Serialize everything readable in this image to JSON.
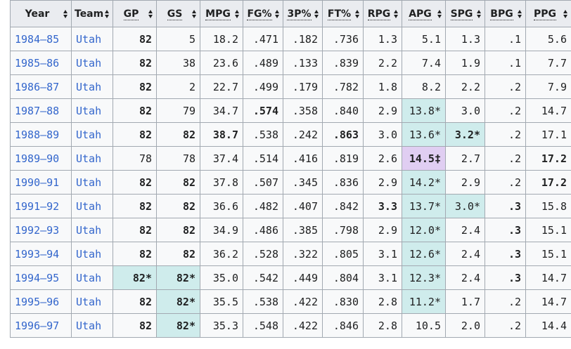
{
  "columns": [
    {
      "label": "Year",
      "abbr": false
    },
    {
      "label": "Team",
      "abbr": false
    },
    {
      "label": "GP",
      "abbr": true
    },
    {
      "label": "GS",
      "abbr": true
    },
    {
      "label": "MPG",
      "abbr": true
    },
    {
      "label": "FG%",
      "abbr": true
    },
    {
      "label": "3P%",
      "abbr": true
    },
    {
      "label": "FT%",
      "abbr": true
    },
    {
      "label": "RPG",
      "abbr": true
    },
    {
      "label": "APG",
      "abbr": true
    },
    {
      "label": "SPG",
      "abbr": true
    },
    {
      "label": "BPG",
      "abbr": true
    },
    {
      "label": "PPG",
      "abbr": true
    }
  ],
  "colors": {
    "header_bg": "#eaecf0",
    "cell_bg": "#f8f9fa",
    "league_lead": "#cfecec",
    "nba_record": "#e0cef2",
    "link": "#3366cc",
    "border": "#a2a9b1"
  },
  "rows": [
    [
      {
        "v": "1984–85",
        "link": true
      },
      {
        "v": "Utah",
        "link": true
      },
      {
        "v": "82",
        "b": true
      },
      {
        "v": "5"
      },
      {
        "v": "18.2"
      },
      {
        "v": ".471"
      },
      {
        "v": ".182"
      },
      {
        "v": ".736"
      },
      {
        "v": "1.3"
      },
      {
        "v": "5.1"
      },
      {
        "v": "1.3"
      },
      {
        "v": ".1"
      },
      {
        "v": "5.6"
      }
    ],
    [
      {
        "v": "1985–86",
        "link": true
      },
      {
        "v": "Utah",
        "link": true
      },
      {
        "v": "82",
        "b": true
      },
      {
        "v": "38"
      },
      {
        "v": "23.6"
      },
      {
        "v": ".489"
      },
      {
        "v": ".133"
      },
      {
        "v": ".839"
      },
      {
        "v": "2.2"
      },
      {
        "v": "7.4"
      },
      {
        "v": "1.9"
      },
      {
        "v": ".1"
      },
      {
        "v": "7.7"
      }
    ],
    [
      {
        "v": "1986–87",
        "link": true
      },
      {
        "v": "Utah",
        "link": true
      },
      {
        "v": "82",
        "b": true
      },
      {
        "v": "2"
      },
      {
        "v": "22.7"
      },
      {
        "v": ".499"
      },
      {
        "v": ".179"
      },
      {
        "v": ".782"
      },
      {
        "v": "1.8"
      },
      {
        "v": "8.2"
      },
      {
        "v": "2.2"
      },
      {
        "v": ".2"
      },
      {
        "v": "7.9"
      }
    ],
    [
      {
        "v": "1987–88",
        "link": true
      },
      {
        "v": "Utah",
        "link": true
      },
      {
        "v": "82",
        "b": true
      },
      {
        "v": "79"
      },
      {
        "v": "34.7"
      },
      {
        "v": ".574",
        "b": true
      },
      {
        "v": ".358"
      },
      {
        "v": ".840"
      },
      {
        "v": "2.9"
      },
      {
        "v": "13.8*",
        "hl": "lead"
      },
      {
        "v": "3.0"
      },
      {
        "v": ".2"
      },
      {
        "v": "14.7"
      }
    ],
    [
      {
        "v": "1988–89",
        "link": true
      },
      {
        "v": "Utah",
        "link": true
      },
      {
        "v": "82",
        "b": true
      },
      {
        "v": "82",
        "b": true
      },
      {
        "v": "38.7",
        "b": true
      },
      {
        "v": ".538"
      },
      {
        "v": ".242"
      },
      {
        "v": ".863",
        "b": true
      },
      {
        "v": "3.0"
      },
      {
        "v": "13.6*",
        "hl": "lead"
      },
      {
        "v": "3.2*",
        "b": true,
        "hl": "lead"
      },
      {
        "v": ".2"
      },
      {
        "v": "17.1"
      }
    ],
    [
      {
        "v": "1989–90",
        "link": true
      },
      {
        "v": "Utah",
        "link": true
      },
      {
        "v": "78"
      },
      {
        "v": "78"
      },
      {
        "v": "37.4"
      },
      {
        "v": ".514"
      },
      {
        "v": ".416"
      },
      {
        "v": ".819"
      },
      {
        "v": "2.6"
      },
      {
        "v": "14.5‡",
        "b": true,
        "hl": "record"
      },
      {
        "v": "2.7"
      },
      {
        "v": ".2"
      },
      {
        "v": "17.2",
        "b": true
      }
    ],
    [
      {
        "v": "1990–91",
        "link": true
      },
      {
        "v": "Utah",
        "link": true
      },
      {
        "v": "82",
        "b": true
      },
      {
        "v": "82",
        "b": true
      },
      {
        "v": "37.8"
      },
      {
        "v": ".507"
      },
      {
        "v": ".345"
      },
      {
        "v": ".836"
      },
      {
        "v": "2.9"
      },
      {
        "v": "14.2*",
        "hl": "lead"
      },
      {
        "v": "2.9"
      },
      {
        "v": ".2"
      },
      {
        "v": "17.2",
        "b": true
      }
    ],
    [
      {
        "v": "1991–92",
        "link": true
      },
      {
        "v": "Utah",
        "link": true
      },
      {
        "v": "82",
        "b": true
      },
      {
        "v": "82",
        "b": true
      },
      {
        "v": "36.6"
      },
      {
        "v": ".482"
      },
      {
        "v": ".407"
      },
      {
        "v": ".842"
      },
      {
        "v": "3.3",
        "b": true
      },
      {
        "v": "13.7*",
        "hl": "lead"
      },
      {
        "v": "3.0*",
        "hl": "lead"
      },
      {
        "v": ".3",
        "b": true
      },
      {
        "v": "15.8"
      }
    ],
    [
      {
        "v": "1992–93",
        "link": true
      },
      {
        "v": "Utah",
        "link": true
      },
      {
        "v": "82",
        "b": true
      },
      {
        "v": "82",
        "b": true
      },
      {
        "v": "34.9"
      },
      {
        "v": ".486"
      },
      {
        "v": ".385"
      },
      {
        "v": ".798"
      },
      {
        "v": "2.9"
      },
      {
        "v": "12.0*",
        "hl": "lead"
      },
      {
        "v": "2.4"
      },
      {
        "v": ".3",
        "b": true
      },
      {
        "v": "15.1"
      }
    ],
    [
      {
        "v": "1993–94",
        "link": true
      },
      {
        "v": "Utah",
        "link": true
      },
      {
        "v": "82",
        "b": true
      },
      {
        "v": "82",
        "b": true
      },
      {
        "v": "36.2"
      },
      {
        "v": ".528"
      },
      {
        "v": ".322"
      },
      {
        "v": ".805"
      },
      {
        "v": "3.1"
      },
      {
        "v": "12.6*",
        "hl": "lead"
      },
      {
        "v": "2.4"
      },
      {
        "v": ".3",
        "b": true
      },
      {
        "v": "15.1"
      }
    ],
    [
      {
        "v": "1994–95",
        "link": true
      },
      {
        "v": "Utah",
        "link": true
      },
      {
        "v": "82*",
        "b": true,
        "hl": "lead"
      },
      {
        "v": "82*",
        "b": true,
        "hl": "lead"
      },
      {
        "v": "35.0"
      },
      {
        "v": ".542"
      },
      {
        "v": ".449"
      },
      {
        "v": ".804"
      },
      {
        "v": "3.1"
      },
      {
        "v": "12.3*",
        "hl": "lead"
      },
      {
        "v": "2.4"
      },
      {
        "v": ".3",
        "b": true
      },
      {
        "v": "14.7"
      }
    ],
    [
      {
        "v": "1995–96",
        "link": true
      },
      {
        "v": "Utah",
        "link": true
      },
      {
        "v": "82",
        "b": true
      },
      {
        "v": "82*",
        "b": true,
        "hl": "lead"
      },
      {
        "v": "35.5"
      },
      {
        "v": ".538"
      },
      {
        "v": ".422"
      },
      {
        "v": ".830"
      },
      {
        "v": "2.8"
      },
      {
        "v": "11.2*",
        "hl": "lead"
      },
      {
        "v": "1.7"
      },
      {
        "v": ".2"
      },
      {
        "v": "14.7"
      }
    ],
    [
      {
        "v": "1996–97",
        "link": true
      },
      {
        "v": "Utah",
        "link": true
      },
      {
        "v": "82",
        "b": true
      },
      {
        "v": "82*",
        "b": true,
        "hl": "lead"
      },
      {
        "v": "35.3"
      },
      {
        "v": ".548"
      },
      {
        "v": ".422"
      },
      {
        "v": ".846"
      },
      {
        "v": "2.8"
      },
      {
        "v": "10.5"
      },
      {
        "v": "2.0"
      },
      {
        "v": ".2"
      },
      {
        "v": "14.4"
      }
    ]
  ]
}
